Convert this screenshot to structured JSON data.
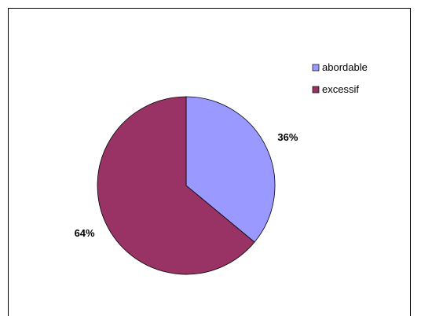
{
  "chart_data": {
    "type": "pie",
    "categories": [
      "abordable",
      "excessif"
    ],
    "values": [
      36,
      64
    ],
    "data_labels": [
      "36%",
      "64%"
    ],
    "colors": [
      "#9999FF",
      "#993366"
    ],
    "legend_placement": "right",
    "start_angle": "12 o'clock, clockwise"
  }
}
